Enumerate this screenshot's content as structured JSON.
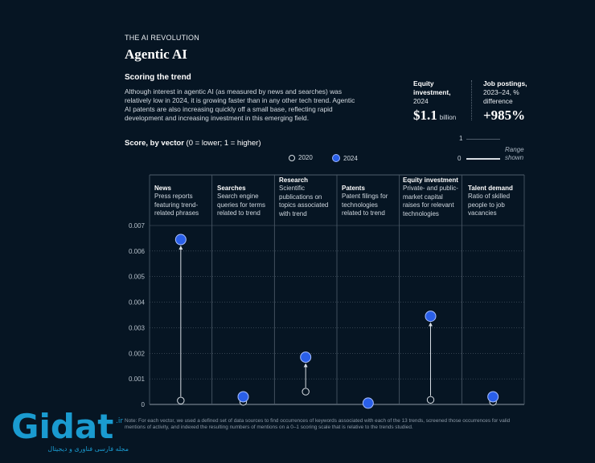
{
  "header": {
    "kicker": "THE AI REVOLUTION",
    "title": "Agentic AI",
    "subtitle": "Scoring the trend",
    "description": "Although interest in agentic AI (as measured by news and searches) was relatively low in 2024, it is growing faster than in any other tech trend. Agentic AI patents are also increasing quickly off a small base, reflecting rapid development and increasing investment in this emerging field."
  },
  "stats": {
    "equity": {
      "label_bold": "Equity investment,",
      "label_rest": "2024",
      "value": "$1.1",
      "unit": "billion"
    },
    "jobs": {
      "label_bold": "Job postings,",
      "label_rest": "2023–24, % difference",
      "value": "+985%"
    }
  },
  "score": {
    "label_bold": "Score, by vector",
    "label_rest": " (0 = lower; 1 = higher)"
  },
  "legend": {
    "y2020": "2020",
    "y2024": "2024"
  },
  "range": {
    "top": "1",
    "bottom": "0",
    "caption_line1": "Range",
    "caption_line2": "shown"
  },
  "colors": {
    "background": "#061523",
    "accent_2024": "#2a5fe8",
    "grid": "#4f5d6b",
    "axis_text": "#b6c0ca"
  },
  "columns": [
    {
      "name": "News",
      "desc": "Press reports featuring trend-related phrases"
    },
    {
      "name": "Searches",
      "desc": "Search engine queries for terms related to trend"
    },
    {
      "name": "Research",
      "desc": "Scientific publications on topics associated with trend"
    },
    {
      "name": "Patents",
      "desc": "Patent filings for technologies related to trend"
    },
    {
      "name": "Equity investment",
      "desc": "Private- and public-market capital raises for relevant technologies"
    },
    {
      "name": "Talent demand",
      "desc": "Ratio of skilled people to job vacancies"
    }
  ],
  "chart_data": {
    "type": "scatter",
    "categories": [
      "News",
      "Searches",
      "Research",
      "Patents",
      "Equity investment",
      "Talent demand"
    ],
    "series": [
      {
        "name": "2020",
        "values": [
          0.00015,
          0.0001,
          0.0005,
          0.0001,
          0.00018,
          0.0001
        ]
      },
      {
        "name": "2024",
        "values": [
          0.00645,
          0.0003,
          0.00185,
          5e-05,
          0.00345,
          0.0003
        ]
      }
    ],
    "yticks": [
      "0.007",
      "0.006",
      "0.005",
      "0.004",
      "0.003",
      "0.002",
      "0.001",
      "0"
    ],
    "ylim": [
      0,
      0.007
    ],
    "grid": true,
    "legend": "top-right"
  },
  "note": "Note: For each vector, we used a defined set of data sources to find occurrences of keywords associated with each of the 13 trends, screened those occurrences for valid mentions of activity, and indexed the resulting numbers of mentions on a 0–1 scoring scale that is relative to the trends studied.",
  "watermark": {
    "logo_text": "Gidat",
    "tagline": "مجله فارسی فناوری و دیجیتال"
  }
}
